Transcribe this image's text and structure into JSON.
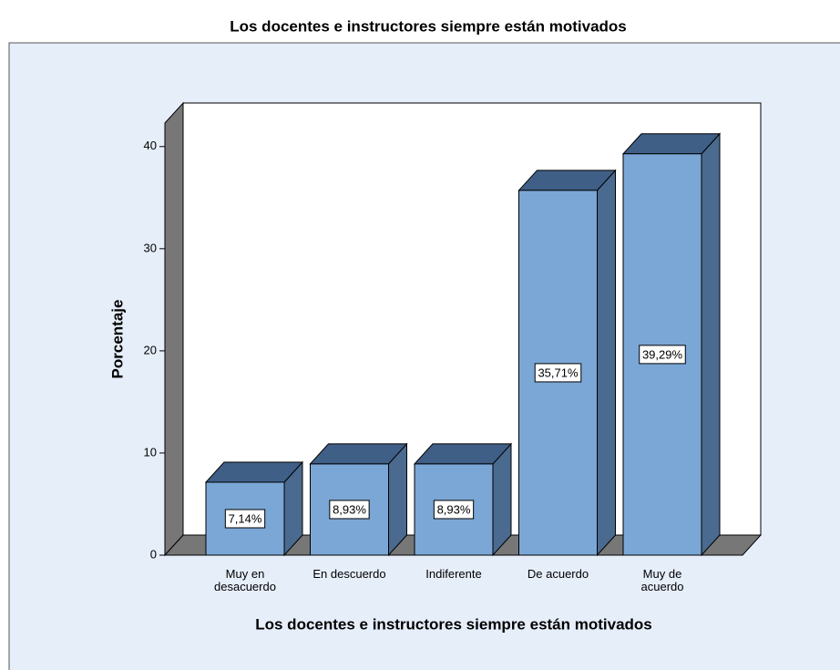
{
  "chart_data": {
    "type": "bar3d",
    "title": "Los docentes e instructores siempre están motivados",
    "x_label": "Los docentes e instructores siempre están motivados",
    "y_label": "Porcentaje",
    "categories": [
      "Muy en desacuerdo",
      "En descuerdo",
      "Indiferente",
      "De acuerdo",
      "Muy de acuerdo"
    ],
    "values": [
      7.14,
      8.93,
      8.93,
      35.71,
      39.29
    ],
    "value_labels": [
      "7,14%",
      "8,93%",
      "8,93%",
      "35,71%",
      "39,29%"
    ],
    "color": "#7ba7d6",
    "ylim": [
      0,
      42.3
    ],
    "yticks": [
      0,
      10,
      20,
      30,
      40
    ]
  }
}
